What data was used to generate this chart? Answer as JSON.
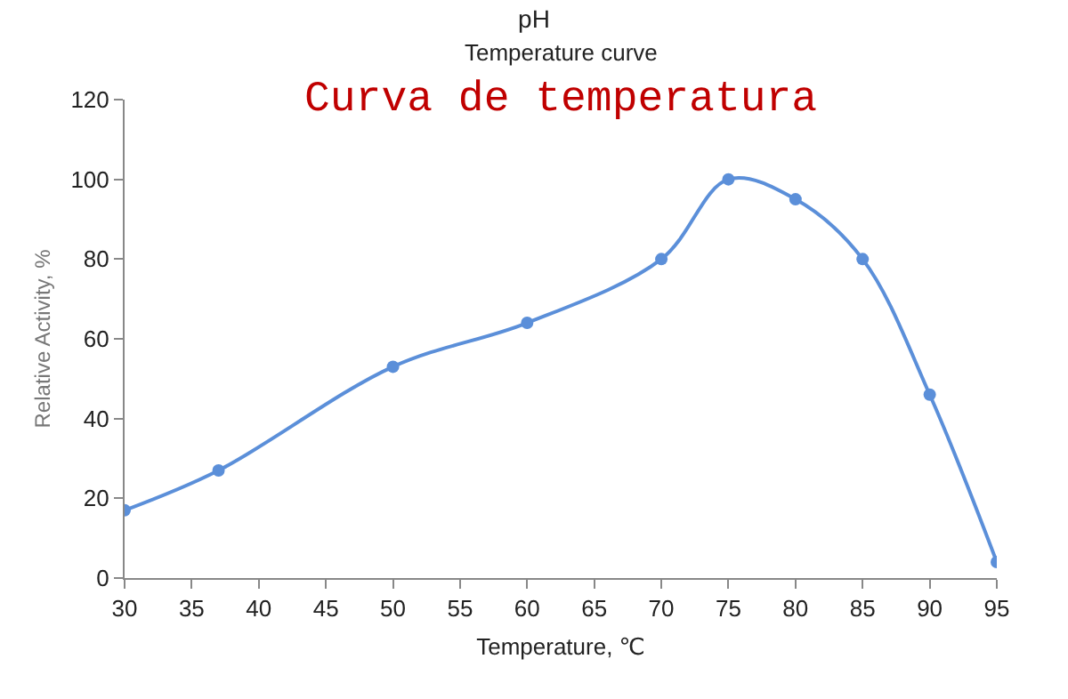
{
  "chart_data": {
    "type": "line",
    "title": "pH",
    "subtitle": "Temperature curve",
    "xlabel": "Temperature, ℃",
    "ylabel": "Relative Activity, %",
    "annotations": [
      "Curva de temperatura"
    ],
    "x": [
      30,
      37,
      50,
      60,
      70,
      75,
      80,
      85,
      90,
      95
    ],
    "series": [
      {
        "color": "#5b8fd9",
        "values": [
          17,
          27,
          53,
          64,
          80,
          100,
          95,
          80,
          46,
          4
        ]
      }
    ],
    "xlim": [
      30,
      95
    ],
    "xticks": [
      30,
      35,
      40,
      45,
      50,
      55,
      60,
      65,
      70,
      75,
      80,
      85,
      90,
      95
    ],
    "ylim": [
      0,
      120
    ],
    "yticks": [
      0,
      20,
      40,
      60,
      80,
      100,
      120
    ],
    "grid": false,
    "marker": "circle",
    "line_style": "solid"
  }
}
